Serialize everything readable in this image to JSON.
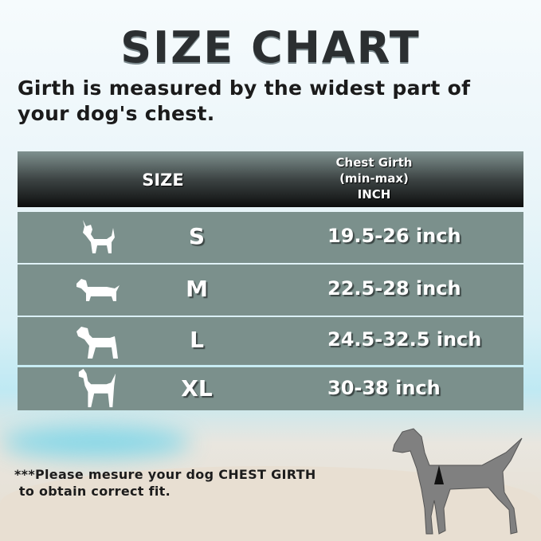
{
  "title": "SIZE CHART",
  "subtitle": "Girth is measured by the widest part of your dog's chest.",
  "table": {
    "header": {
      "size": "SIZE",
      "girth_line1": "Chest Girth",
      "girth_line2": "(min-max)",
      "girth_line3": "INCH"
    },
    "rows": [
      {
        "icon": "chihuahua-icon",
        "size": "S",
        "girth": "19.5-26 inch"
      },
      {
        "icon": "dachshund-icon",
        "size": "M",
        "girth": "22.5-28 inch"
      },
      {
        "icon": "labrador-icon",
        "size": "L",
        "girth": "24.5-32.5 inch"
      },
      {
        "icon": "great-dane-icon",
        "size": "XL",
        "girth": "30-38 inch"
      }
    ]
  },
  "note_line1": "***Please mesure your dog CHEST GIRTH",
  "note_line2": " to obtain correct fit.",
  "colors": {
    "row_bg": "#7b908c",
    "header_bg": "#0d0e0e",
    "dog_illustration": "#808080"
  }
}
